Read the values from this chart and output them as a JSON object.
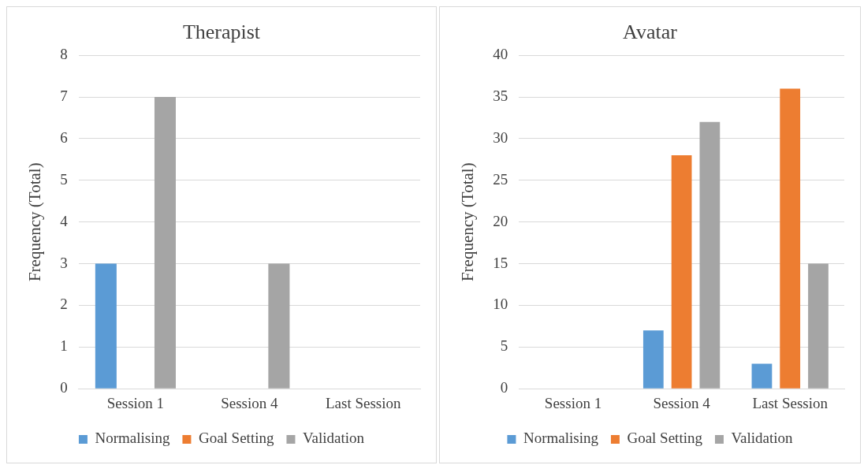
{
  "chart_data": [
    {
      "type": "bar",
      "title": "Therapist",
      "ylabel": "Frequency (Total)",
      "categories": [
        "Session 1",
        "Session 4",
        "Last Session"
      ],
      "series": [
        {
          "name": "Normalising",
          "color": "#5b9bd5",
          "values": [
            3,
            0,
            0
          ]
        },
        {
          "name": "Goal Setting",
          "color": "#ed7d31",
          "values": [
            0,
            0,
            0
          ]
        },
        {
          "name": "Validation",
          "color": "#a5a5a5",
          "values": [
            7,
            3,
            0
          ]
        }
      ],
      "ylim": [
        0,
        8
      ],
      "yticks": [
        0,
        1,
        2,
        3,
        4,
        5,
        6,
        7,
        8
      ],
      "grid": "y",
      "legend": "bottom"
    },
    {
      "type": "bar",
      "title": "Avatar",
      "ylabel": "Frequency (Total)",
      "categories": [
        "Session 1",
        "Session 4",
        "Last Session"
      ],
      "series": [
        {
          "name": "Normalising",
          "color": "#5b9bd5",
          "values": [
            0,
            7,
            3
          ]
        },
        {
          "name": "Goal Setting",
          "color": "#ed7d31",
          "values": [
            0,
            28,
            36
          ]
        },
        {
          "name": "Validation",
          "color": "#a5a5a5",
          "values": [
            0,
            32,
            15
          ]
        }
      ],
      "ylim": [
        0,
        40
      ],
      "yticks": [
        0,
        5,
        10,
        15,
        20,
        25,
        30,
        35,
        40
      ],
      "grid": "y",
      "legend": "bottom"
    }
  ]
}
